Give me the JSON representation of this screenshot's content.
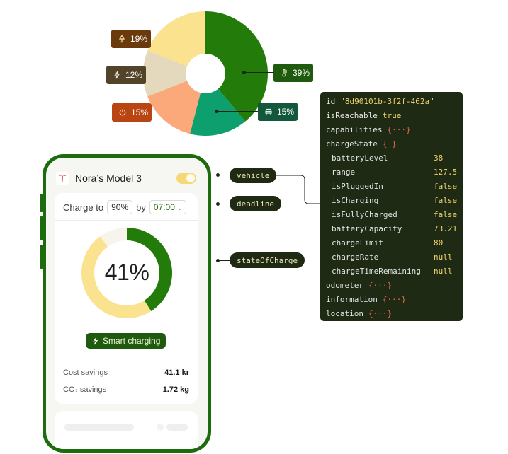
{
  "pie": {
    "slices": [
      {
        "icon": "thermometer-icon",
        "pct_value": 39,
        "label": "39%",
        "color": "#237c09"
      },
      {
        "icon": "car-icon",
        "pct_value": 15,
        "label": "15%",
        "color": "#0e9f6e"
      },
      {
        "icon": "power-icon",
        "pct_value": 15,
        "label": "15%",
        "color": "#fba97a"
      },
      {
        "icon": "bolt-icon",
        "pct_value": 12,
        "label": "12%",
        "color": "#e4d9bd"
      },
      {
        "icon": "lamp-icon",
        "pct_value": 19,
        "label": "19%",
        "color": "#fbe28e"
      }
    ]
  },
  "phone": {
    "car_name": "Nora’s Model 3",
    "charge_to_label": "Charge to",
    "charge_to_value": "90%",
    "by_label": "by",
    "time_value": "07:00",
    "state_of_charge": 41,
    "state_of_charge_label": "41%",
    "charged_color": "#237c09",
    "remaining_color": "#fbe28e",
    "smart_charging_label": "Smart charging",
    "cost_savings_label": "Cost savings",
    "cost_savings_value": "41.1 kr",
    "co2_savings_label": "CO₂ savings",
    "co2_savings_value": "1.72 kg"
  },
  "code_labels": {
    "vehicle": "vehicle",
    "deadline": "deadline",
    "state_of_charge": "stateOfCharge"
  },
  "json_panel": {
    "rows": [
      {
        "key": "id",
        "value": "\"8d90101b-3f2f-462a\"",
        "kind": "str"
      },
      {
        "key": "isReachable",
        "value": "true",
        "kind": "val"
      },
      {
        "key": "capabilities",
        "value": "{···}",
        "kind": "brace"
      },
      {
        "key": "chargeState",
        "value": "{ }",
        "kind": "brace"
      },
      {
        "key": "batteryLevel",
        "value": "38",
        "kind": "val",
        "indent": true
      },
      {
        "key": "range",
        "value": "127.5",
        "kind": "val",
        "indent": true
      },
      {
        "key": "isPluggedIn",
        "value": "false",
        "kind": "val",
        "indent": true
      },
      {
        "key": "isCharging",
        "value": "false",
        "kind": "val",
        "indent": true
      },
      {
        "key": "isFullyCharged",
        "value": "false",
        "kind": "val",
        "indent": true
      },
      {
        "key": "batteryCapacity",
        "value": "73.21",
        "kind": "val",
        "indent": true
      },
      {
        "key": "chargeLimit",
        "value": "80",
        "kind": "val",
        "indent": true
      },
      {
        "key": "chargeRate",
        "value": "null",
        "kind": "val",
        "indent": true
      },
      {
        "key": "chargeTimeRemaining",
        "value": "null",
        "kind": "val",
        "indent": true
      },
      {
        "key": "odometer",
        "value": "{···}",
        "kind": "brace"
      },
      {
        "key": "information",
        "value": "{···}",
        "kind": "brace"
      },
      {
        "key": "location",
        "value": "{···}",
        "kind": "brace"
      }
    ]
  }
}
